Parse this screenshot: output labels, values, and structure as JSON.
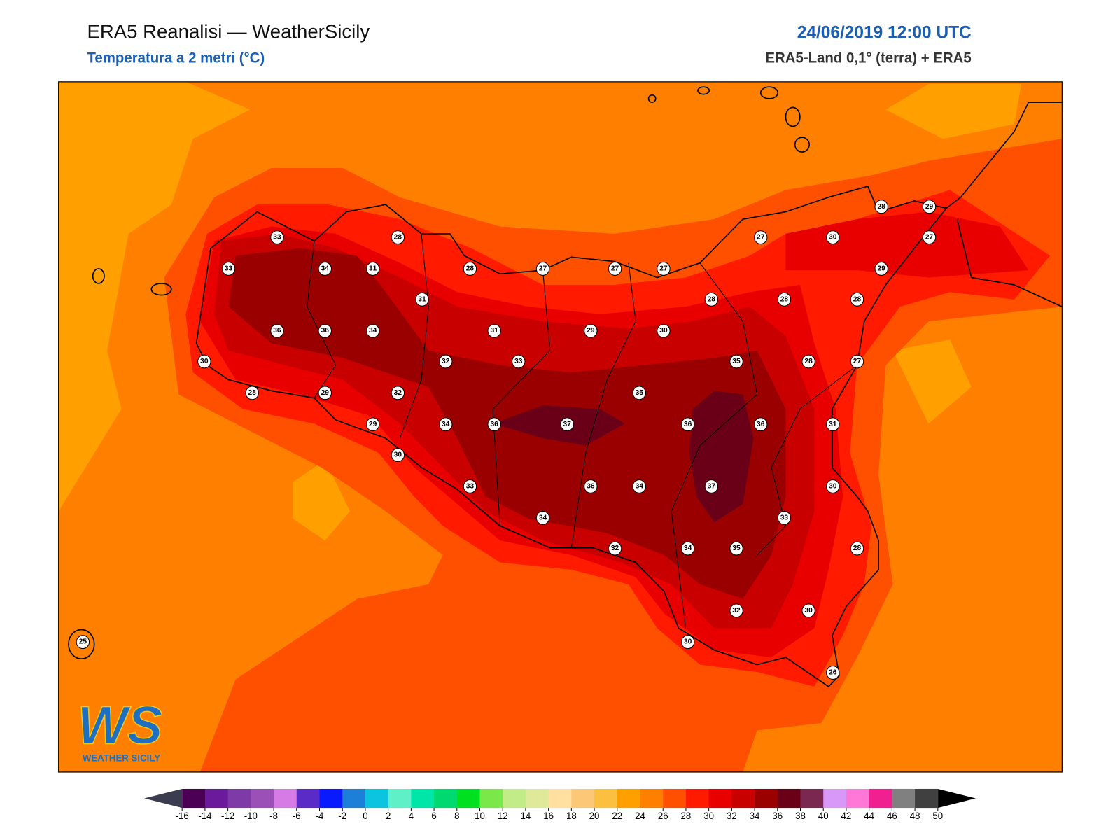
{
  "header": {
    "title": "ERA5 Reanalisi — WeatherSicily",
    "subtitle": "Temperatura a 2 metri (°C)",
    "datetime": "24/06/2019 12:00 UTC",
    "source": "ERA5-Land 0,1° (terra) + ERA5"
  },
  "map": {
    "stations": [
      33,
      28,
      33,
      34,
      31,
      28,
      27,
      27,
      27,
      27,
      30,
      28,
      29,
      27,
      29,
      31,
      28,
      28,
      28,
      36,
      36,
      34,
      31,
      29,
      30,
      30,
      32,
      33,
      35,
      28,
      27,
      28,
      29,
      32,
      35,
      29,
      34,
      36,
      37,
      36,
      36,
      31,
      30,
      33,
      36,
      34,
      37,
      30,
      34,
      33,
      32,
      34,
      35,
      28,
      32,
      30,
      30,
      26,
      25
    ]
  },
  "colorbar": {
    "ticks": [
      -16,
      -14,
      -12,
      -10,
      -8,
      -6,
      -4,
      -2,
      0,
      2,
      4,
      6,
      8,
      10,
      12,
      14,
      16,
      18,
      20,
      22,
      24,
      26,
      28,
      30,
      32,
      34,
      36,
      38,
      40,
      42,
      44,
      46,
      48,
      50
    ],
    "colors": [
      "#4b0055",
      "#6a1a9a",
      "#7e3ba8",
      "#9b50b8",
      "#d67ae6",
      "#5b2bc8",
      "#0a1aff",
      "#1e7fd8",
      "#0cc4e0",
      "#5ff0c8",
      "#00e6a8",
      "#00d870",
      "#00e020",
      "#7ae848",
      "#c2ec88",
      "#e0e89a",
      "#ffe0a0",
      "#fcc878",
      "#fcc040",
      "#ffa000",
      "#ff8000",
      "#ff5000",
      "#ff1a00",
      "#e80000",
      "#c80000",
      "#9a0000",
      "#6a0018",
      "#7a2850",
      "#d898f8",
      "#ff78d8",
      "#f02090",
      "#808080",
      "#404040"
    ],
    "under_color": "#3c3c50",
    "over_color": "#000000"
  },
  "logo": {
    "mark": "WS",
    "text": "WEATHER SICILY"
  }
}
